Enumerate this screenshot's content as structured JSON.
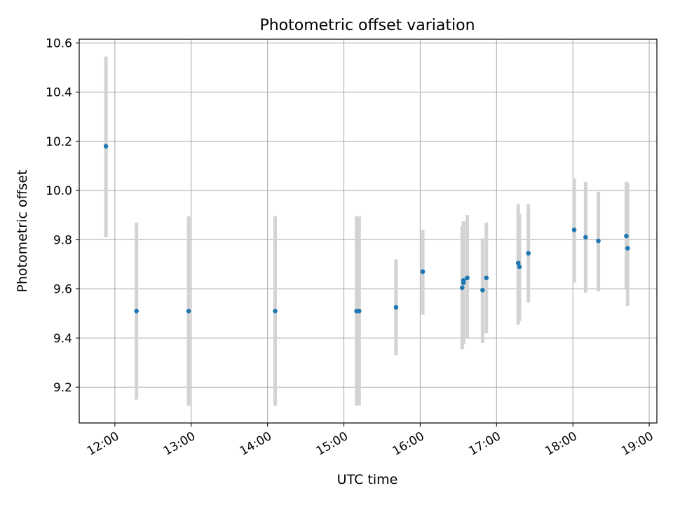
{
  "chart_data": {
    "type": "scatter",
    "title": "Photometric offset variation",
    "xlabel": "UTC time",
    "ylabel": "Photometric offset",
    "x_tick_labels": [
      "12:00",
      "13:00",
      "14:00",
      "15:00",
      "16:00",
      "17:00",
      "18:00",
      "19:00"
    ],
    "y_tick_labels": [
      "9.2",
      "9.4",
      "9.6",
      "9.8",
      "10.0",
      "10.2",
      "10.4",
      "10.6"
    ],
    "y_ticks": [
      9.2,
      9.4,
      9.6,
      9.8,
      10.0,
      10.2,
      10.4,
      10.6
    ],
    "xlim": [
      "11:32",
      "19:06"
    ],
    "ylim": [
      9.055,
      10.615
    ],
    "grid": true,
    "marker_color": "#1f77b4",
    "errorbar_color": "#d3d3d3",
    "points": [
      {
        "x": "11:53",
        "y": 10.18,
        "ymin": 9.81,
        "ymax": 10.545
      },
      {
        "x": "12:17",
        "y": 9.51,
        "ymin": 9.15,
        "ymax": 9.87
      },
      {
        "x": "12:58",
        "y": 9.51,
        "ymin": 9.125,
        "ymax": 9.895
      },
      {
        "x": "14:06",
        "y": 9.51,
        "ymin": 9.125,
        "ymax": 9.895
      },
      {
        "x": "15:10",
        "y": 9.51,
        "ymin": 9.125,
        "ymax": 9.895
      },
      {
        "x": "15:12",
        "y": 9.51,
        "ymin": 9.125,
        "ymax": 9.895
      },
      {
        "x": "15:41",
        "y": 9.525,
        "ymin": 9.33,
        "ymax": 9.72
      },
      {
        "x": "16:02",
        "y": 9.67,
        "ymin": 9.495,
        "ymax": 9.84
      },
      {
        "x": "16:33",
        "y": 9.605,
        "ymin": 9.355,
        "ymax": 9.855
      },
      {
        "x": "16:34",
        "y": 9.625,
        "ymin": 9.375,
        "ymax": 9.875
      },
      {
        "x": "16:34",
        "y": 9.635,
        "ymin": 9.385,
        "ymax": 9.87
      },
      {
        "x": "16:37",
        "y": 9.645,
        "ymin": 9.4,
        "ymax": 9.9
      },
      {
        "x": "16:49",
        "y": 9.595,
        "ymin": 9.38,
        "ymax": 9.805
      },
      {
        "x": "16:52",
        "y": 9.645,
        "ymin": 9.42,
        "ymax": 9.87
      },
      {
        "x": "17:17",
        "y": 9.705,
        "ymin": 9.455,
        "ymax": 9.945
      },
      {
        "x": "17:18",
        "y": 9.69,
        "ymin": 9.47,
        "ymax": 9.905
      },
      {
        "x": "17:25",
        "y": 9.745,
        "ymin": 9.545,
        "ymax": 9.945
      },
      {
        "x": "18:01",
        "y": 9.84,
        "ymin": 9.625,
        "ymax": 10.05
      },
      {
        "x": "18:10",
        "y": 9.81,
        "ymin": 9.585,
        "ymax": 10.035
      },
      {
        "x": "18:20",
        "y": 9.795,
        "ymin": 9.59,
        "ymax": 9.995
      },
      {
        "x": "18:42",
        "y": 9.815,
        "ymin": 9.6,
        "ymax": 10.035
      },
      {
        "x": "18:43",
        "y": 9.765,
        "ymin": 9.53,
        "ymax": 10.03
      }
    ]
  }
}
